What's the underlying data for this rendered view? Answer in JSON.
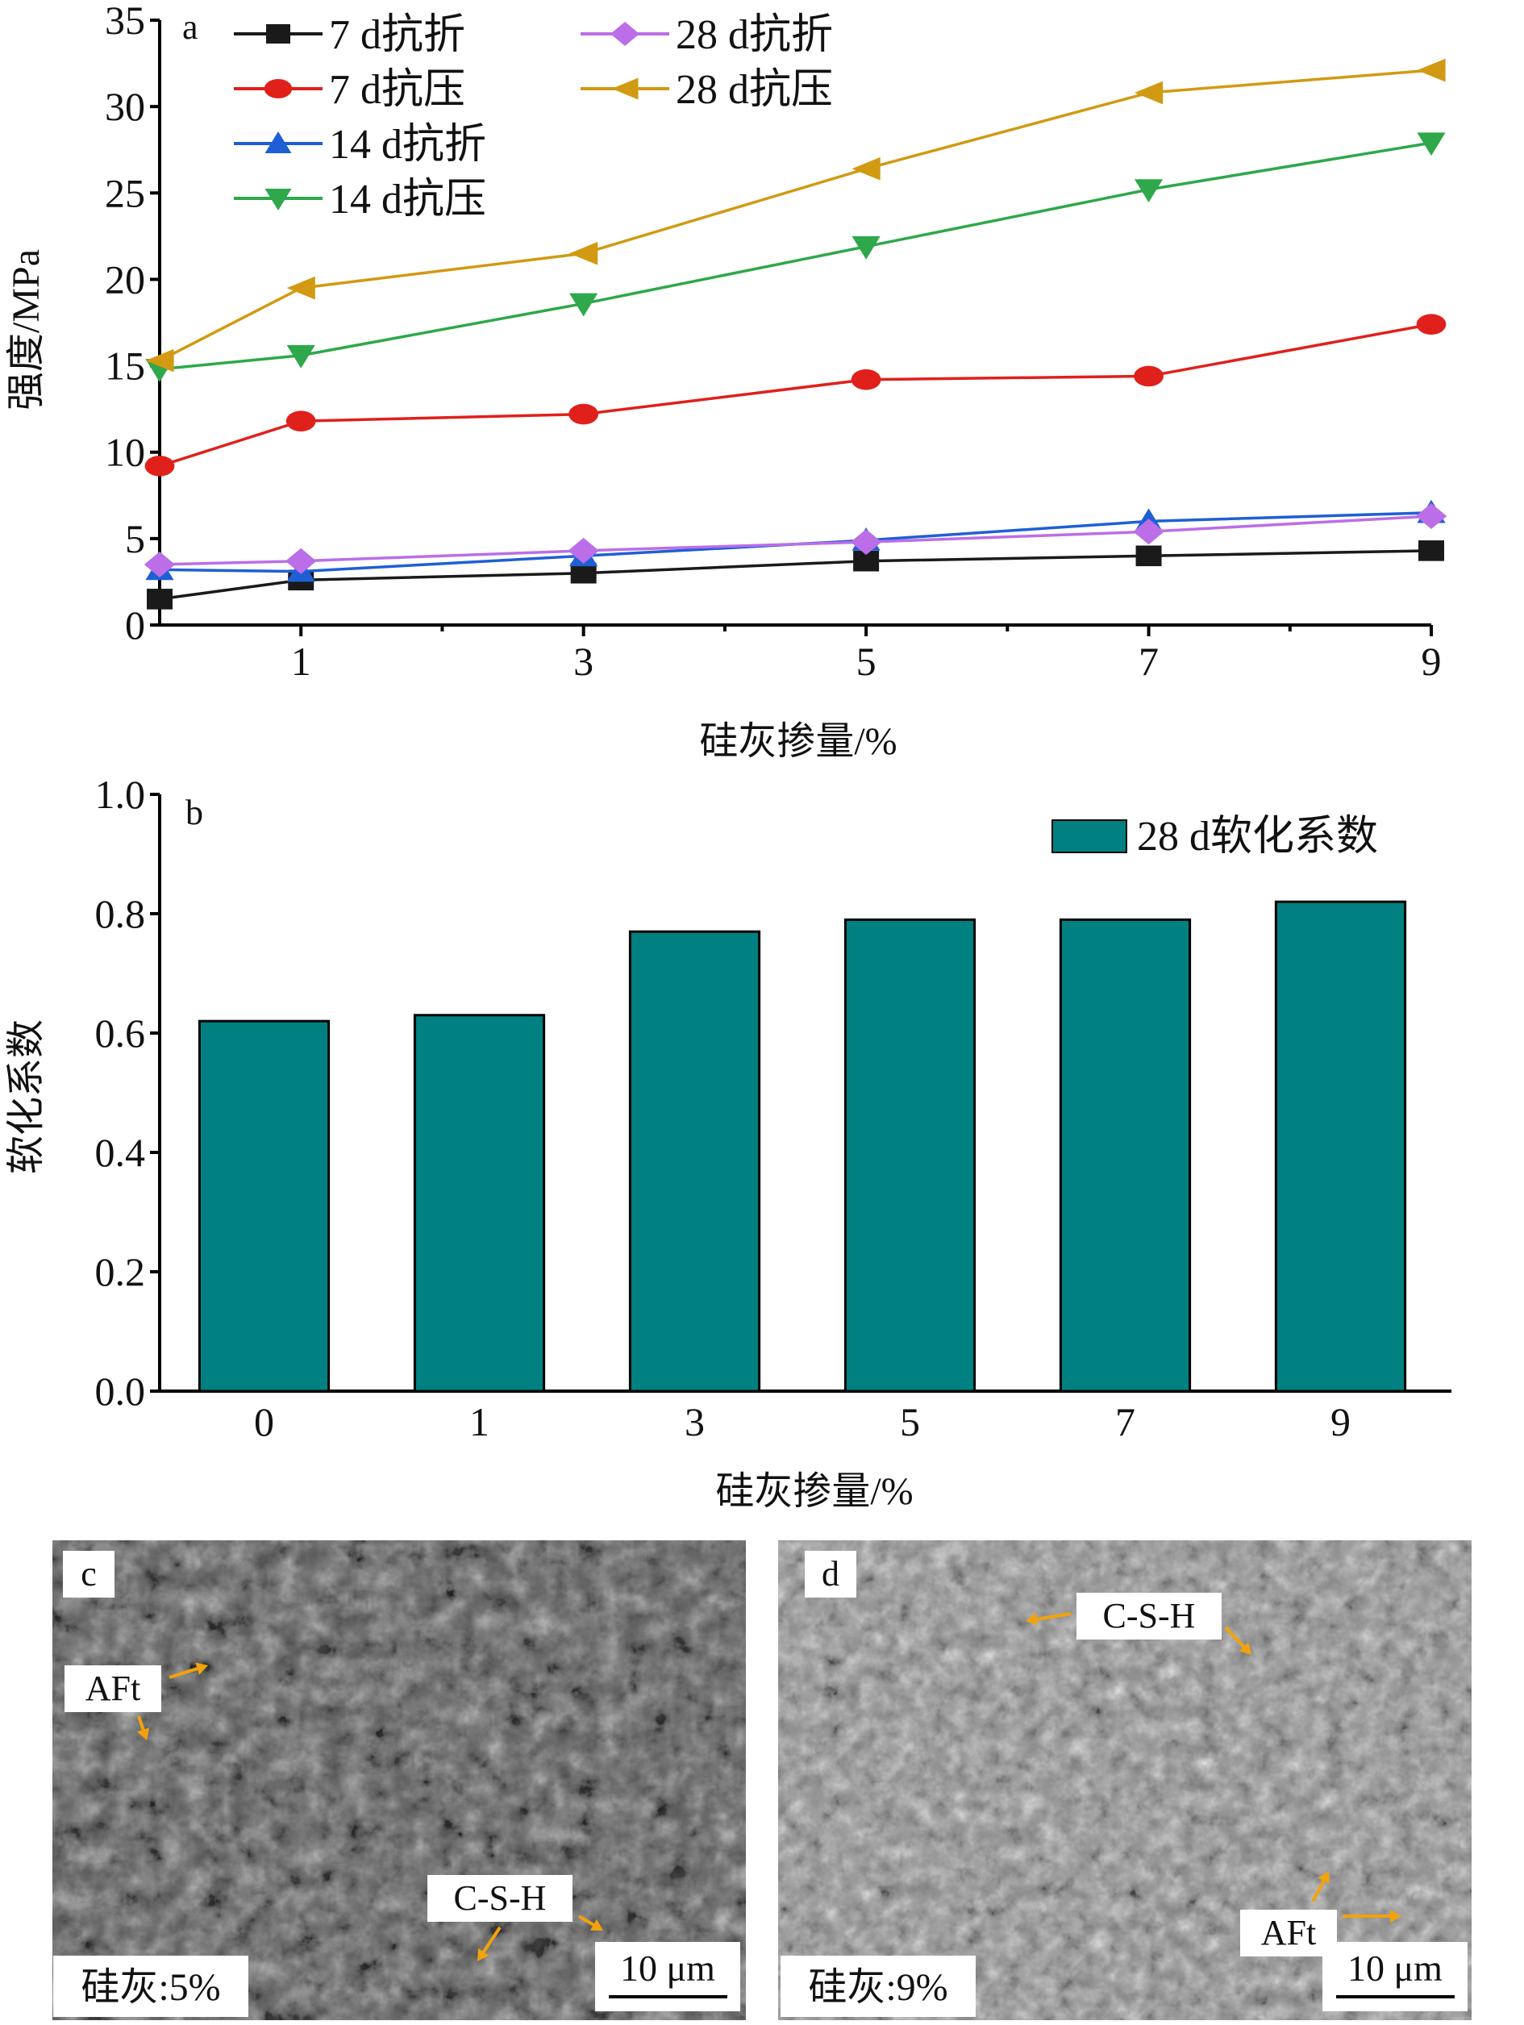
{
  "chart_data": [
    {
      "panel": "a",
      "type": "line",
      "xlabel": "硅灰掺量/%",
      "ylabel": "强度/MPa",
      "x": [
        0,
        1,
        3,
        5,
        7,
        9
      ],
      "xticks": [
        "1",
        "3",
        "5",
        "7",
        "9"
      ],
      "xlim": [
        0,
        9
      ],
      "ylim": [
        0,
        35
      ],
      "yticks": [
        "0",
        "5",
        "10",
        "15",
        "20",
        "25",
        "30",
        "35"
      ],
      "legend_position": "top-left",
      "series": [
        {
          "name": "7 d抗折",
          "color": "#1a1a1a",
          "marker": "square",
          "values": [
            1.5,
            2.6,
            3.0,
            3.7,
            4.0,
            4.3
          ]
        },
        {
          "name": "7 d抗压",
          "color": "#e0201b",
          "marker": "circle",
          "values": [
            9.2,
            11.8,
            12.2,
            14.2,
            14.4,
            17.4
          ]
        },
        {
          "name": "14 d抗折",
          "color": "#1e5fd6",
          "marker": "triangle-up",
          "values": [
            3.2,
            3.1,
            4.0,
            4.9,
            6.0,
            6.5
          ]
        },
        {
          "name": "14 d抗压",
          "color": "#2ea84a",
          "marker": "triangle-down",
          "values": [
            14.8,
            15.6,
            18.6,
            21.9,
            25.2,
            27.9
          ]
        },
        {
          "name": "28 d抗折",
          "color": "#bb6ee8",
          "marker": "diamond",
          "values": [
            3.5,
            3.7,
            4.3,
            4.8,
            5.4,
            6.3
          ]
        },
        {
          "name": "28 d抗压",
          "color": "#d29a13",
          "marker": "triangle-left",
          "values": [
            15.3,
            19.5,
            21.5,
            26.4,
            30.8,
            32.1
          ]
        }
      ]
    },
    {
      "panel": "b",
      "type": "bar",
      "xlabel": "硅灰掺量/%",
      "ylabel": "软化系数",
      "categories": [
        "0",
        "1",
        "3",
        "5",
        "7",
        "9"
      ],
      "ylim": [
        0,
        1.0
      ],
      "yticks": [
        "0.0",
        "0.2",
        "0.4",
        "0.6",
        "0.8",
        "1.0"
      ],
      "legend_position": "top-right",
      "series": [
        {
          "name": "28 d软化系数",
          "color": "#008080",
          "values": [
            0.62,
            0.63,
            0.77,
            0.79,
            0.79,
            0.82
          ]
        }
      ]
    }
  ],
  "micrographs": [
    {
      "panel": "c",
      "caption": "硅灰:5%",
      "scale_bar": "10 μm",
      "labels": [
        "AFt",
        "C-S-H"
      ]
    },
    {
      "panel": "d",
      "caption": "硅灰:9%",
      "scale_bar": "10 μm",
      "labels": [
        "C-S-H",
        "AFt"
      ]
    }
  ],
  "arrow_color": "#f2a20c"
}
